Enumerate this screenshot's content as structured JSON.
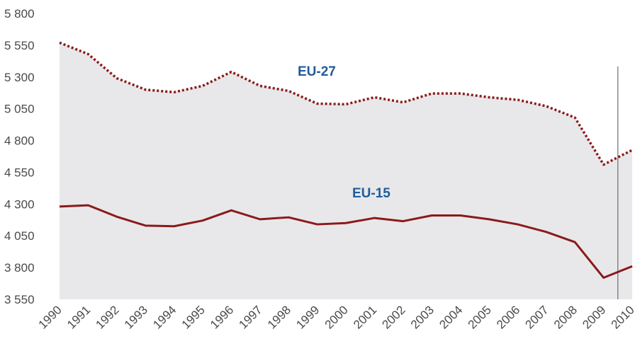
{
  "chart_data": {
    "type": "area",
    "x": [
      1990,
      1991,
      1992,
      1993,
      1994,
      1995,
      1996,
      1997,
      1998,
      1999,
      2000,
      2001,
      2002,
      2003,
      2004,
      2005,
      2006,
      2007,
      2008,
      2009,
      2010
    ],
    "x_tick_labels": [
      "1990",
      "1991",
      "1992",
      "1993",
      "1994",
      "1995",
      "1996",
      "1997",
      "1998",
      "1999",
      "2000",
      "2001",
      "2002",
      "2003",
      "2004",
      "2005",
      "2006",
      "2007",
      "2008",
      "2009",
      "2010"
    ],
    "ylim": [
      3550,
      5800
    ],
    "y_ticks": [
      3550,
      3800,
      4050,
      4300,
      4550,
      4800,
      5050,
      5300,
      5550,
      5800
    ],
    "y_tick_labels": [
      "3 550",
      "3 800",
      "4 050",
      "4 300",
      "4 550",
      "4 800",
      "5 050",
      "5 300",
      "5 550",
      "5 800"
    ],
    "grid": false,
    "divider_x": 2009.5,
    "series": [
      {
        "name": "EU-27",
        "style": "dotted",
        "color": "#8b1a1a",
        "values": [
          5570,
          5480,
          5290,
          5200,
          5180,
          5230,
          5340,
          5230,
          5190,
          5090,
          5085,
          5140,
          5100,
          5170,
          5170,
          5140,
          5120,
          5070,
          4980,
          4610,
          4725
        ]
      },
      {
        "name": "EU-15",
        "style": "solid",
        "color": "#8b1a1a",
        "values": [
          4280,
          4290,
          4200,
          4130,
          4125,
          4170,
          4250,
          4180,
          4195,
          4140,
          4150,
          4190,
          4165,
          4210,
          4210,
          4180,
          4140,
          4080,
          4000,
          3720,
          3810
        ]
      }
    ],
    "area_fill": "#e8e8ea",
    "label_color": "#1f5c99"
  }
}
